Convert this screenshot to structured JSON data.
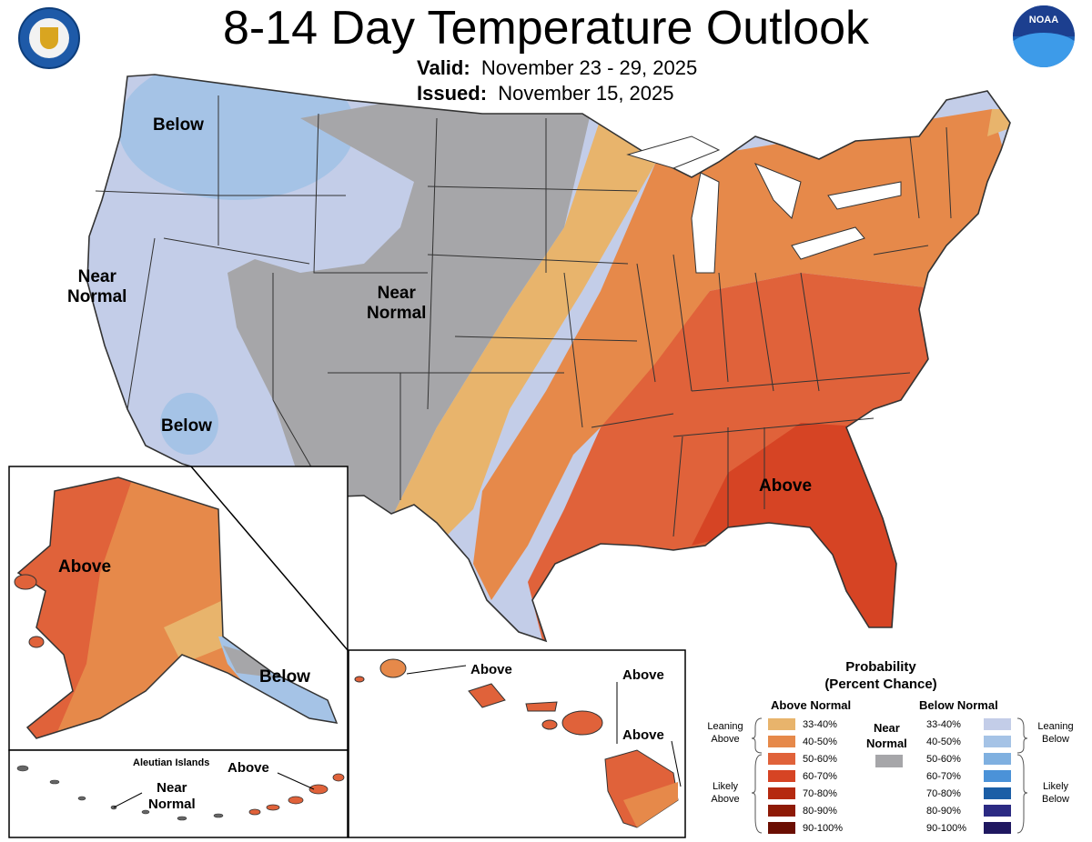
{
  "title": "8-14 Day Temperature Outlook",
  "valid": {
    "label": "Valid:",
    "value": "November 23 - 29, 2025"
  },
  "issued": {
    "label": "Issued:",
    "value": "November 15, 2025"
  },
  "map_labels": {
    "below_nw": "Below",
    "near_normal_west": "Near\nNormal",
    "near_normal_central": "Near\nNormal",
    "below_sw": "Below",
    "above_se": "Above",
    "alaska_above": "Above",
    "alaska_below": "Below",
    "aleutian_title": "Aleutian Islands",
    "aleutian_near": "Near\nNormal",
    "aleutian_above": "Above",
    "hawaii_above_1": "Above",
    "hawaii_above_2": "Above",
    "hawaii_above_3": "Above"
  },
  "legend": {
    "title": "Probability\n(Percent Chance)",
    "above_header": "Above Normal",
    "below_header": "Below Normal",
    "near_label": "Near\nNormal",
    "leaning_above": "Leaning\nAbove",
    "likely_above": "Likely\nAbove",
    "leaning_below": "Leaning\nBelow",
    "likely_below": "Likely\nBelow",
    "above": [
      {
        "range": "33-40%",
        "color": "#e8b46c"
      },
      {
        "range": "40-50%",
        "color": "#e6894a"
      },
      {
        "range": "50-60%",
        "color": "#e0623a"
      },
      {
        "range": "60-70%",
        "color": "#d64424"
      },
      {
        "range": "70-80%",
        "color": "#b52a10"
      },
      {
        "range": "80-90%",
        "color": "#8e1a06"
      },
      {
        "range": "90-100%",
        "color": "#6b0e02"
      }
    ],
    "below": [
      {
        "range": "33-40%",
        "color": "#c3cde8"
      },
      {
        "range": "40-50%",
        "color": "#a5c3e6"
      },
      {
        "range": "50-60%",
        "color": "#7fb0e0"
      },
      {
        "range": "60-70%",
        "color": "#4b92d8"
      },
      {
        "range": "70-80%",
        "color": "#1b5ea6"
      },
      {
        "range": "80-90%",
        "color": "#2b2a83"
      },
      {
        "range": "90-100%",
        "color": "#1f1860"
      }
    ],
    "near_color": "#a6a6a9"
  }
}
